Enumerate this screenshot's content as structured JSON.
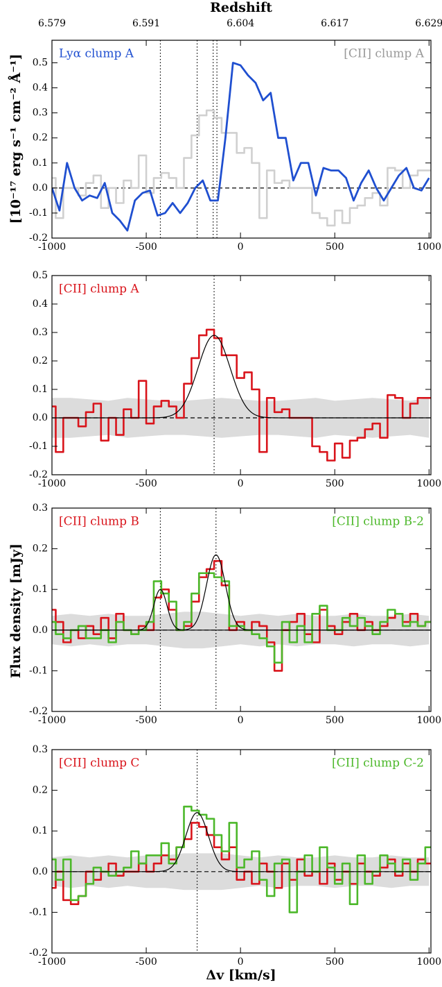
{
  "ylabel": "Flux density [mJy]",
  "chart_data": [
    {
      "type": "spectrum",
      "ylabel": "[10⁻¹⁷ erg s⁻¹ cm⁻² Å⁻¹]",
      "x2label": "Redshift",
      "x2ticks": [
        {
          "value": -1000,
          "label": "6.579"
        },
        {
          "value": -500,
          "label": "6.591"
        },
        {
          "value": 0,
          "label": "6.604"
        },
        {
          "value": 500,
          "label": "6.617"
        },
        {
          "value": 1000,
          "label": "6.629"
        }
      ],
      "xlim": [
        -1000,
        1010
      ],
      "ylim": [
        -0.2,
        0.59
      ],
      "xticks": [
        -1000,
        -500,
        0,
        500,
        1000
      ],
      "yticks": [
        -0.2,
        -0.1,
        {
          "value": 0,
          "label": "0.0"
        },
        0.1,
        0.2,
        0.3,
        0.4,
        0.5
      ],
      "hline": 0,
      "vlines": [
        -425,
        -230,
        -145,
        -125
      ],
      "x": [
        -1000,
        -960,
        -920,
        -880,
        -840,
        -800,
        -760,
        -720,
        -680,
        -640,
        -600,
        -560,
        -520,
        -480,
        -440,
        -400,
        -360,
        -320,
        -280,
        -240,
        -200,
        -160,
        -120,
        -80,
        -40,
        0,
        40,
        80,
        120,
        160,
        200,
        240,
        280,
        320,
        360,
        400,
        440,
        480,
        520,
        560,
        600,
        640,
        680,
        720,
        760,
        800,
        840,
        880,
        920,
        960,
        1000
      ],
      "series": [
        {
          "name": "[CII] clump A",
          "color": "#d0d0d0",
          "label_color": "#999999",
          "drawstyle": "step",
          "legend": "upper right",
          "values": [
            0.04,
            -0.12,
            0.0,
            0.0,
            -0.03,
            0.02,
            0.05,
            -0.08,
            0.0,
            -0.06,
            0.03,
            0.0,
            0.13,
            -0.02,
            0.04,
            0.06,
            0.04,
            0.0,
            0.12,
            0.21,
            0.29,
            0.31,
            0.28,
            0.22,
            0.22,
            0.14,
            0.16,
            0.1,
            -0.12,
            0.07,
            0.02,
            0.03,
            0.0,
            0.0,
            0.0,
            -0.1,
            -0.12,
            -0.15,
            -0.09,
            -0.14,
            -0.08,
            -0.07,
            -0.04,
            -0.02,
            -0.07,
            0.08,
            0.07,
            0.0,
            0.05,
            0.07,
            0.07
          ]
        },
        {
          "name": "Lyα clump A",
          "color": "#1f4fd0",
          "label_color": "#1f4fd0",
          "drawstyle": "line",
          "legend": "upper left",
          "values": [
            0.0,
            -0.09,
            0.1,
            0.0,
            -0.05,
            -0.03,
            -0.04,
            0.02,
            -0.1,
            -0.13,
            -0.17,
            -0.05,
            -0.02,
            -0.01,
            -0.11,
            -0.1,
            -0.06,
            -0.1,
            -0.06,
            0.0,
            0.03,
            -0.05,
            -0.05,
            0.2,
            0.5,
            0.49,
            0.45,
            0.42,
            0.35,
            0.38,
            0.2,
            0.2,
            0.03,
            0.1,
            0.1,
            -0.03,
            0.08,
            0.07,
            0.07,
            0.04,
            -0.05,
            0.02,
            0.07,
            0.0,
            -0.05,
            0.0,
            0.05,
            0.08,
            0.0,
            -0.01,
            0.04
          ]
        }
      ]
    },
    {
      "type": "spectrum",
      "xlim": [
        -1000,
        1010
      ],
      "ylim": [
        -0.2,
        0.5
      ],
      "xticks": [
        -1000,
        -500,
        0,
        500,
        1000
      ],
      "yticks": [
        -0.2,
        -0.1,
        {
          "value": 0,
          "label": "0.0"
        },
        0.1,
        0.2,
        0.3,
        0.4,
        0.5
      ],
      "hline": 0,
      "vlines": [
        -140
      ],
      "noise_x": [
        -1000,
        -900,
        -800,
        -700,
        -600,
        -500,
        -400,
        -300,
        -200,
        -100,
        0,
        100,
        200,
        300,
        400,
        500,
        600,
        700,
        800,
        900,
        1000
      ],
      "noise": [
        0.07,
        0.07,
        0.065,
        0.06,
        0.07,
        0.065,
        0.06,
        0.06,
        0.065,
        0.07,
        0.065,
        0.06,
        0.06,
        0.065,
        0.07,
        0.06,
        0.065,
        0.07,
        0.065,
        0.06,
        0.07
      ],
      "fits": [
        {
          "amplitude": 0.29,
          "center": -140,
          "sigma": 85
        }
      ],
      "x": [
        -1000,
        -960,
        -920,
        -880,
        -840,
        -800,
        -760,
        -720,
        -680,
        -640,
        -600,
        -560,
        -520,
        -480,
        -440,
        -400,
        -360,
        -320,
        -280,
        -240,
        -200,
        -160,
        -120,
        -80,
        -40,
        0,
        40,
        80,
        120,
        160,
        200,
        240,
        280,
        320,
        360,
        400,
        440,
        480,
        520,
        560,
        600,
        640,
        680,
        720,
        760,
        800,
        840,
        880,
        920,
        960,
        1000
      ],
      "series": [
        {
          "name": "[CII] clump A",
          "color": "#d9141b",
          "label_color": "#d9141b",
          "drawstyle": "step",
          "legend": "upper left",
          "values": [
            0.04,
            -0.12,
            0.0,
            0.0,
            -0.03,
            0.02,
            0.05,
            -0.08,
            0.0,
            -0.06,
            0.03,
            0.0,
            0.13,
            -0.02,
            0.04,
            0.06,
            0.04,
            0.0,
            0.12,
            0.21,
            0.29,
            0.31,
            0.28,
            0.22,
            0.22,
            0.14,
            0.16,
            0.1,
            -0.12,
            0.07,
            0.02,
            0.03,
            0.0,
            0.0,
            0.0,
            -0.1,
            -0.12,
            -0.15,
            -0.09,
            -0.14,
            -0.08,
            -0.07,
            -0.04,
            -0.02,
            -0.07,
            0.08,
            0.07,
            0.0,
            0.05,
            0.07,
            0.07
          ]
        }
      ]
    },
    {
      "type": "spectrum",
      "xlim": [
        -1000,
        1010
      ],
      "ylim": [
        -0.2,
        0.3
      ],
      "xticks": [
        -1000,
        -500,
        0,
        500,
        1000
      ],
      "yticks": [
        -0.2,
        -0.1,
        {
          "value": 0,
          "label": "0.0"
        },
        0.1,
        0.2,
        0.3
      ],
      "hline": 0,
      "vlines": [
        -425,
        -130
      ],
      "noise_x": [
        -1000,
        -900,
        -800,
        -700,
        -600,
        -500,
        -400,
        -300,
        -200,
        -100,
        0,
        100,
        200,
        300,
        400,
        500,
        600,
        700,
        800,
        900,
        1000
      ],
      "noise": [
        0.035,
        0.04,
        0.035,
        0.04,
        0.035,
        0.035,
        0.04,
        0.045,
        0.045,
        0.04,
        0.035,
        0.04,
        0.035,
        0.04,
        0.035,
        0.035,
        0.04,
        0.035,
        0.035,
        0.04,
        0.035
      ],
      "fits": [
        {
          "amplitude": 0.1,
          "center": -425,
          "sigma": 35
        },
        {
          "amplitude": 0.185,
          "center": -130,
          "sigma": 50
        }
      ],
      "x": [
        -1000,
        -960,
        -920,
        -880,
        -840,
        -800,
        -760,
        -720,
        -680,
        -640,
        -600,
        -560,
        -520,
        -480,
        -440,
        -400,
        -360,
        -320,
        -280,
        -240,
        -200,
        -160,
        -120,
        -80,
        -40,
        0,
        40,
        80,
        120,
        160,
        200,
        240,
        280,
        320,
        360,
        400,
        440,
        480,
        520,
        560,
        600,
        640,
        680,
        720,
        760,
        800,
        840,
        880,
        920,
        960,
        1000
      ],
      "series": [
        {
          "name": "[CII] clump B",
          "color": "#d9141b",
          "label_color": "#d9141b",
          "drawstyle": "step",
          "legend": "upper left",
          "values": [
            0.05,
            0.02,
            -0.03,
            0.0,
            -0.02,
            0.01,
            -0.01,
            0.03,
            -0.02,
            0.04,
            0.0,
            -0.01,
            0.01,
            0.0,
            0.08,
            0.1,
            0.05,
            0.0,
            0.01,
            0.07,
            0.13,
            0.15,
            0.17,
            0.11,
            0.0,
            0.02,
            0.0,
            0.02,
            0.01,
            -0.03,
            -0.1,
            0.0,
            0.02,
            0.04,
            -0.01,
            -0.03,
            0.05,
            0.01,
            -0.01,
            0.02,
            0.04,
            0.0,
            0.02,
            0.0,
            0.01,
            0.03,
            0.04,
            0.02,
            0.04,
            0.01,
            0.02
          ]
        },
        {
          "name": "[CII] clump B-2",
          "color": "#4cb82a",
          "label_color": "#4cb82a",
          "drawstyle": "step",
          "legend": "upper right",
          "values": [
            0.02,
            -0.01,
            -0.02,
            0.0,
            0.01,
            -0.02,
            -0.02,
            0.0,
            -0.03,
            0.02,
            0.0,
            -0.01,
            0.0,
            0.02,
            0.12,
            0.09,
            0.07,
            0.0,
            0.02,
            0.09,
            0.14,
            0.14,
            0.13,
            0.12,
            0.01,
            0.01,
            0.0,
            -0.01,
            -0.02,
            -0.04,
            -0.08,
            0.02,
            -0.03,
            0.01,
            -0.03,
            0.04,
            0.06,
            0.0,
            0.0,
            0.03,
            0.01,
            0.03,
            0.01,
            -0.01,
            0.02,
            0.05,
            0.04,
            0.01,
            0.02,
            0.01,
            0.02
          ]
        }
      ]
    },
    {
      "type": "spectrum",
      "xlim": [
        -1000,
        1010
      ],
      "ylim": [
        -0.2,
        0.3
      ],
      "xlabel": "Δv [km/s]",
      "xticks": [
        -1000,
        -500,
        0,
        500,
        1000
      ],
      "yticks": [
        -0.2,
        -0.1,
        {
          "value": 0,
          "label": "0.0"
        },
        0.1,
        0.2,
        0.3
      ],
      "hline": 0,
      "vlines": [
        -230
      ],
      "noise_x": [
        -1000,
        -900,
        -800,
        -700,
        -600,
        -500,
        -400,
        -300,
        -200,
        -100,
        0,
        100,
        200,
        300,
        400,
        500,
        600,
        700,
        800,
        900,
        1000
      ],
      "noise": [
        0.035,
        0.04,
        0.035,
        0.04,
        0.035,
        0.04,
        0.04,
        0.045,
        0.045,
        0.045,
        0.04,
        0.035,
        0.04,
        0.035,
        0.035,
        0.04,
        0.035,
        0.035,
        0.04,
        0.035,
        0.035
      ],
      "fits": [
        {
          "amplitude": 0.145,
          "center": -230,
          "sigma": 60
        }
      ],
      "x": [
        -1000,
        -960,
        -920,
        -880,
        -840,
        -800,
        -760,
        -720,
        -680,
        -640,
        -600,
        -560,
        -520,
        -480,
        -440,
        -400,
        -360,
        -320,
        -280,
        -240,
        -200,
        -160,
        -120,
        -80,
        -40,
        0,
        40,
        80,
        120,
        160,
        200,
        240,
        280,
        320,
        360,
        400,
        440,
        480,
        520,
        560,
        600,
        640,
        680,
        720,
        760,
        800,
        840,
        880,
        920,
        960,
        1000
      ],
      "series": [
        {
          "name": "[CII] clump C",
          "color": "#d9141b",
          "label_color": "#d9141b",
          "drawstyle": "step",
          "legend": "upper left",
          "values": [
            -0.04,
            0.0,
            -0.07,
            -0.08,
            -0.06,
            0.0,
            -0.02,
            0.0,
            0.02,
            -0.01,
            0.0,
            0.0,
            0.02,
            0.0,
            0.02,
            0.04,
            0.03,
            0.06,
            0.08,
            0.12,
            0.11,
            0.09,
            0.06,
            0.03,
            0.06,
            -0.02,
            0.0,
            -0.03,
            0.02,
            0.0,
            -0.04,
            0.02,
            -0.02,
            0.03,
            -0.01,
            0.0,
            -0.03,
            0.02,
            -0.02,
            0.0,
            -0.03,
            0.02,
            0.0,
            -0.01,
            0.01,
            0.03,
            -0.01,
            0.02,
            0.0,
            0.03,
            0.02
          ]
        },
        {
          "name": "[CII] clump C-2",
          "color": "#4cb82a",
          "label_color": "#4cb82a",
          "drawstyle": "step",
          "legend": "upper right",
          "values": [
            0.03,
            -0.02,
            0.03,
            -0.07,
            -0.06,
            -0.03,
            0.01,
            0.0,
            -0.01,
            0.0,
            0.01,
            0.05,
            0.02,
            0.04,
            0.04,
            0.07,
            0.02,
            0.06,
            0.16,
            0.15,
            0.14,
            0.13,
            0.09,
            0.05,
            0.12,
            0.01,
            0.03,
            0.05,
            -0.02,
            -0.06,
            0.02,
            0.03,
            -0.1,
            0.0,
            0.04,
            0.0,
            0.06,
            0.01,
            -0.03,
            0.02,
            -0.08,
            0.04,
            -0.03,
            0.0,
            0.04,
            0.02,
            0.0,
            0.03,
            -0.02,
            0.02,
            0.06
          ]
        }
      ]
    }
  ]
}
